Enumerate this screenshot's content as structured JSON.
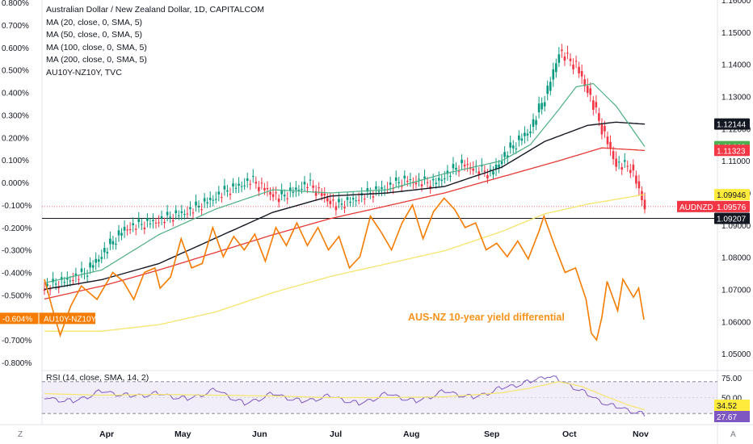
{
  "header": {
    "title": "Australian Dollar / New Zealand Dollar, 1D, CAPITALCOM",
    "indicators": [
      "MA (20, close, 0, SMA, 5)",
      "MA (50, close, 0, SMA, 5)",
      "MA (100, close, 0, SMA, 5)",
      "MA (200, close, 0, SMA, 5)",
      "AU10Y-NZ10Y, TVC"
    ]
  },
  "rsi_label": "RSI (14, close, SMA, 14, 2)",
  "annotation": "AUS-NZ 10-year yield differential",
  "corner_left": "Z",
  "corner_right": "A",
  "colors": {
    "up": "#089981",
    "down": "#f23645",
    "ma20": "#4caf83",
    "ma100": "#131722",
    "ma200": "#e53935",
    "ma50": "#f5e56b",
    "spread": "#f57c00",
    "rsi": "#7e57c2",
    "rsi_ma": "#f5e56b"
  },
  "chart_data": {
    "type": "line",
    "x_months": [
      "Apr",
      "May",
      "Jun",
      "Jul",
      "Aug",
      "Sep",
      "Oct",
      "Nov"
    ],
    "y_right": {
      "ticks": [
        "1.16000",
        "1.15000",
        "1.14000",
        "1.13000",
        "1.12000",
        "1.11000",
        "1.10000",
        "1.09000",
        "1.08000",
        "1.07000",
        "1.06000",
        "1.05000"
      ],
      "range": [
        1.045,
        1.16
      ]
    },
    "y_left": {
      "ticks": [
        "0.800%",
        "0.700%",
        "0.600%",
        "0.500%",
        "0.400%",
        "0.300%",
        "0.200%",
        "0.100%",
        "0.000%",
        "-0.100%",
        "-0.200%",
        "-0.300%",
        "-0.400%",
        "-0.500%",
        "-0.600%",
        "-0.700%",
        "-0.800%"
      ],
      "range": [
        -0.8,
        0.8
      ]
    },
    "price_labels": [
      {
        "value": 1.12144,
        "text": "1.12144",
        "bg": "#131722",
        "fg": "#ffffff"
      },
      {
        "value": 1.1144,
        "text": "1.11440",
        "bg": "#4caf50",
        "fg": "#ffffff"
      },
      {
        "value": 1.11323,
        "text": "1.11323",
        "bg": "#f23645",
        "fg": "#ffffff"
      },
      {
        "value": 1.09946,
        "text": "1.09946",
        "bg": "#ffeb3b",
        "fg": "#131722"
      },
      {
        "value": 1.09576,
        "text": "1.09576",
        "bg": "#f23645",
        "fg": "#ffffff",
        "tag": "AUDNZD"
      },
      {
        "value": 1.09207,
        "text": "1.09207",
        "bg": "#131722",
        "fg": "#ffffff"
      }
    ],
    "horizontal_line": 1.09207,
    "spread_label": {
      "value": -0.604,
      "text": "-0.604%",
      "tag": "AU10Y-NZ10Y"
    },
    "rsi": {
      "ticks": [
        "75.00",
        "50.00"
      ],
      "range": [
        20,
        80
      ],
      "bands": [
        70,
        30
      ],
      "labels": [
        {
          "value": 34.52,
          "text": "34.52",
          "bg": "#ffeb3b",
          "fg": "#131722"
        },
        {
          "value": 27.67,
          "text": "27.67",
          "bg": "#7e57c2",
          "fg": "#ffffff"
        }
      ]
    },
    "price_anchors": [
      [
        0,
        1.0705
      ],
      [
        14,
        1.075
      ],
      [
        28,
        1.089
      ],
      [
        42,
        1.092
      ],
      [
        52,
        1.095
      ],
      [
        62,
        1.1
      ],
      [
        72,
        1.104
      ],
      [
        82,
        1.0985
      ],
      [
        92,
        1.103
      ],
      [
        102,
        1.096
      ],
      [
        114,
        1.1
      ],
      [
        126,
        1.104
      ],
      [
        136,
        1.103
      ],
      [
        146,
        1.109
      ],
      [
        156,
        1.106
      ],
      [
        162,
        1.113
      ],
      [
        170,
        1.12
      ],
      [
        176,
        1.132
      ],
      [
        180,
        1.144
      ],
      [
        186,
        1.1395
      ],
      [
        190,
        1.132
      ],
      [
        195,
        1.12
      ],
      [
        200,
        1.109
      ],
      [
        205,
        1.108
      ],
      [
        208,
        1.101
      ],
      [
        210,
        1.0958
      ]
    ],
    "ma20_anchors": [
      [
        0,
        1.072
      ],
      [
        20,
        1.076
      ],
      [
        40,
        1.087
      ],
      [
        60,
        1.095
      ],
      [
        80,
        1.101
      ],
      [
        100,
        1.1
      ],
      [
        120,
        1.101
      ],
      [
        140,
        1.106
      ],
      [
        160,
        1.11
      ],
      [
        170,
        1.115
      ],
      [
        180,
        1.126
      ],
      [
        186,
        1.133
      ],
      [
        192,
        1.134
      ],
      [
        200,
        1.127
      ],
      [
        210,
        1.1144
      ]
    ],
    "ma100_anchors": [
      [
        0,
        1.07
      ],
      [
        20,
        1.073
      ],
      [
        40,
        1.078
      ],
      [
        60,
        1.086
      ],
      [
        80,
        1.094
      ],
      [
        100,
        1.099
      ],
      [
        120,
        1.1
      ],
      [
        140,
        1.102
      ],
      [
        160,
        1.108
      ],
      [
        175,
        1.116
      ],
      [
        190,
        1.121
      ],
      [
        200,
        1.122
      ],
      [
        210,
        1.1214
      ]
    ],
    "ma200_anchors": [
      [
        0,
        1.067
      ],
      [
        20,
        1.071
      ],
      [
        40,
        1.076
      ],
      [
        60,
        1.0815
      ],
      [
        80,
        1.087
      ],
      [
        100,
        1.092
      ],
      [
        120,
        1.096
      ],
      [
        140,
        1.1
      ],
      [
        160,
        1.105
      ],
      [
        180,
        1.11
      ],
      [
        195,
        1.114
      ],
      [
        210,
        1.1132
      ]
    ],
    "ma50_anchors": [
      [
        0,
        1.057
      ],
      [
        20,
        1.057
      ],
      [
        40,
        1.059
      ],
      [
        60,
        1.063
      ],
      [
        80,
        1.069
      ],
      [
        100,
        1.074
      ],
      [
        120,
        1.078
      ],
      [
        140,
        1.082
      ],
      [
        160,
        1.088
      ],
      [
        175,
        1.0935
      ],
      [
        190,
        1.0965
      ],
      [
        210,
        1.0995
      ]
    ],
    "spread_anchors": [
      [
        0,
        -0.43
      ],
      [
        3,
        -0.56
      ],
      [
        6,
        -0.68
      ],
      [
        10,
        -0.55
      ],
      [
        14,
        -0.46
      ],
      [
        20,
        -0.52
      ],
      [
        26,
        -0.4
      ],
      [
        30,
        -0.44
      ],
      [
        34,
        -0.52
      ],
      [
        38,
        -0.4
      ],
      [
        42,
        -0.38
      ],
      [
        44,
        -0.47
      ],
      [
        48,
        -0.42
      ],
      [
        52,
        -0.25
      ],
      [
        56,
        -0.38
      ],
      [
        60,
        -0.36
      ],
      [
        64,
        -0.2
      ],
      [
        68,
        -0.33
      ],
      [
        72,
        -0.24
      ],
      [
        76,
        -0.3
      ],
      [
        80,
        -0.23
      ],
      [
        84,
        -0.35
      ],
      [
        88,
        -0.2
      ],
      [
        92,
        -0.28
      ],
      [
        96,
        -0.18
      ],
      [
        100,
        -0.28
      ],
      [
        104,
        -0.2
      ],
      [
        108,
        -0.3
      ],
      [
        112,
        -0.24
      ],
      [
        116,
        -0.38
      ],
      [
        120,
        -0.33
      ],
      [
        124,
        -0.15
      ],
      [
        128,
        -0.22
      ],
      [
        132,
        -0.3
      ],
      [
        136,
        -0.18
      ],
      [
        140,
        -0.1
      ],
      [
        144,
        -0.25
      ],
      [
        148,
        -0.13
      ],
      [
        152,
        -0.07
      ],
      [
        156,
        -0.12
      ],
      [
        160,
        -0.2
      ],
      [
        164,
        -0.18
      ],
      [
        168,
        -0.3
      ],
      [
        172,
        -0.27
      ],
      [
        176,
        -0.33
      ],
      [
        180,
        -0.26
      ],
      [
        184,
        -0.34
      ],
      [
        188,
        -0.22
      ],
      [
        190,
        -0.15
      ],
      [
        194,
        -0.28
      ],
      [
        198,
        -0.4
      ],
      [
        202,
        -0.38
      ],
      [
        206,
        -0.52
      ],
      [
        208,
        -0.67
      ],
      [
        210,
        -0.7
      ],
      [
        212,
        -0.6
      ],
      [
        214,
        -0.44
      ],
      [
        218,
        -0.57
      ],
      [
        220,
        -0.43
      ],
      [
        224,
        -0.51
      ],
      [
        226,
        -0.47
      ],
      [
        228,
        -0.61
      ]
    ],
    "rsi_anchors": [
      [
        0,
        50
      ],
      [
        10,
        45
      ],
      [
        20,
        58
      ],
      [
        30,
        52
      ],
      [
        40,
        55
      ],
      [
        50,
        48
      ],
      [
        60,
        60
      ],
      [
        70,
        42
      ],
      [
        80,
        55
      ],
      [
        90,
        45
      ],
      [
        100,
        52
      ],
      [
        110,
        42
      ],
      [
        120,
        55
      ],
      [
        130,
        45
      ],
      [
        140,
        58
      ],
      [
        150,
        50
      ],
      [
        160,
        62
      ],
      [
        170,
        70
      ],
      [
        176,
        78
      ],
      [
        180,
        72
      ],
      [
        186,
        62
      ],
      [
        192,
        50
      ],
      [
        198,
        40
      ],
      [
        204,
        35
      ],
      [
        210,
        28
      ]
    ],
    "rsi_ma_anchors": [
      [
        0,
        55
      ],
      [
        20,
        53
      ],
      [
        40,
        54
      ],
      [
        60,
        53
      ],
      [
        80,
        52
      ],
      [
        100,
        50
      ],
      [
        120,
        50
      ],
      [
        140,
        51
      ],
      [
        160,
        56
      ],
      [
        170,
        62
      ],
      [
        180,
        70
      ],
      [
        188,
        64
      ],
      [
        196,
        52
      ],
      [
        204,
        41
      ],
      [
        210,
        34.5
      ]
    ]
  }
}
